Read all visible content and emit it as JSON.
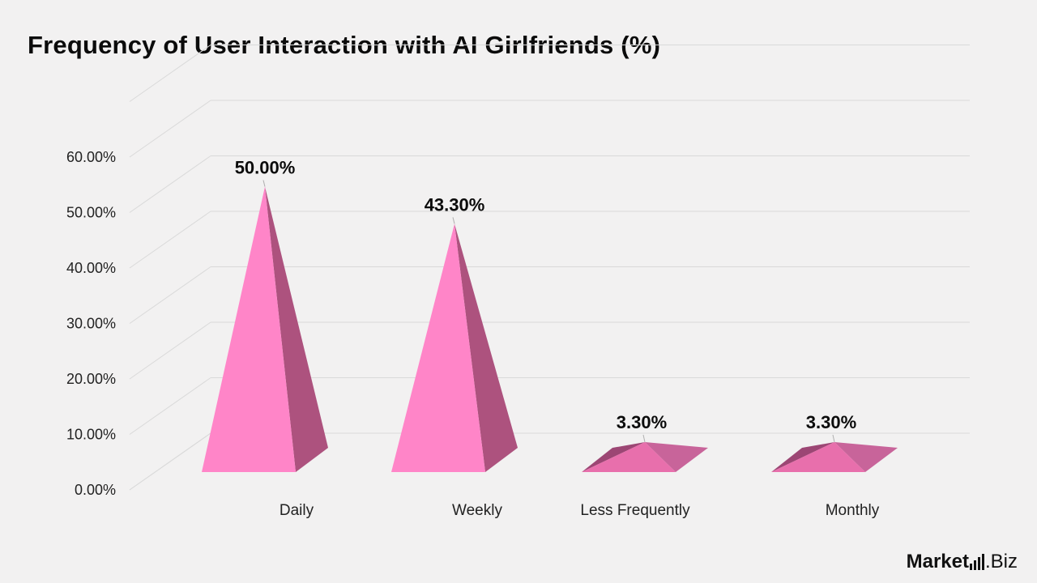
{
  "chart_data": {
    "type": "bar",
    "style": "3d-pyramid",
    "title": "Frequency of User Interaction with AI Girlfriends (%)",
    "categories": [
      "Daily",
      "Weekly",
      "Less Frequently",
      "Monthly"
    ],
    "values": [
      50.0,
      43.3,
      3.3,
      3.3
    ],
    "data_labels": [
      "50.00%",
      "43.30%",
      "3.30%",
      "3.30%"
    ],
    "y_ticks": [
      "0.00%",
      "10.00%",
      "20.00%",
      "30.00%",
      "40.00%",
      "50.00%",
      "60.00%"
    ],
    "ylim": [
      0,
      60
    ],
    "grid": true,
    "legend": "none",
    "xlabel": "",
    "ylabel": ""
  },
  "colors": {
    "background": "#f2f1f1",
    "pyramid_front": "#ff85c8",
    "pyramid_side": "#ad527e",
    "short_front": "#e86fac",
    "short_side": "#c8649a",
    "short_back": "#9c4674",
    "gridline": "#d9d9d9",
    "text": "#0b0b0b"
  },
  "brand": {
    "name_bold": "Market",
    "name_light": ".Biz"
  }
}
